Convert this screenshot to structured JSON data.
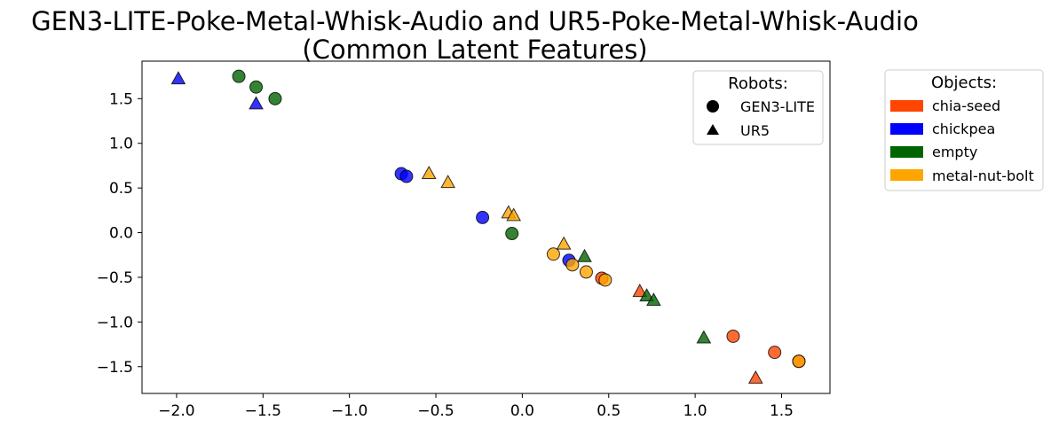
{
  "chart_data": {
    "type": "scatter",
    "title": "GEN3-LITE-Poke-Metal-Whisk-Audio and UR5-Poke-Metal-Whisk-Audio\n(Common Latent Features)",
    "xlim": [
      -2.2,
      1.78
    ],
    "ylim": [
      -1.8,
      1.92
    ],
    "x_ticks": [
      -2.0,
      -1.5,
      -1.0,
      -0.5,
      0.0,
      0.5,
      1.0,
      1.5
    ],
    "y_ticks": [
      1.5,
      1.0,
      0.5,
      0.0,
      -0.5,
      -1.0,
      -1.5
    ],
    "x_tick_labels": [
      "−2.0",
      "−1.5",
      "−1.0",
      "−0.5",
      "0.0",
      "0.5",
      "1.0",
      "1.5"
    ],
    "y_tick_labels": [
      "1.5",
      "1.0",
      "0.5",
      "0.0",
      "−0.5",
      "−1.0",
      "−1.5"
    ],
    "grid": false,
    "colors": {
      "chia-seed": "#ff4500",
      "chickpea": "#0000ff",
      "empty": "#006400",
      "metal-nut-bolt": "#ffa500"
    },
    "robots_legend": {
      "title": "Robots:",
      "placement": "top-right inside plot",
      "entries": [
        {
          "label": "GEN3-LITE",
          "marker": "circle"
        },
        {
          "label": "UR5",
          "marker": "triangle"
        }
      ]
    },
    "objects_legend": {
      "title": "Objects:",
      "placement": "right outside plot",
      "entries": [
        {
          "label": "chia-seed",
          "color": "#ff4500"
        },
        {
          "label": "chickpea",
          "color": "#0000ff"
        },
        {
          "label": "empty",
          "color": "#006400"
        },
        {
          "label": "metal-nut-bolt",
          "color": "#ffa500"
        }
      ]
    },
    "series": [
      {
        "robot": "GEN3-LITE",
        "object": "chia-seed",
        "marker": "circle",
        "points": [
          [
            0.46,
            -0.51
          ],
          [
            1.22,
            -1.16
          ],
          [
            1.46,
            -1.34
          ],
          [
            1.6,
            -1.44
          ]
        ]
      },
      {
        "robot": "GEN3-LITE",
        "object": "chickpea",
        "marker": "circle",
        "points": [
          [
            -0.7,
            0.66
          ],
          [
            -0.67,
            0.63
          ],
          [
            -0.23,
            0.17
          ],
          [
            0.27,
            -0.31
          ]
        ]
      },
      {
        "robot": "GEN3-LITE",
        "object": "empty",
        "marker": "circle",
        "points": [
          [
            -1.64,
            1.75
          ],
          [
            -1.54,
            1.63
          ],
          [
            -1.43,
            1.5
          ],
          [
            -0.06,
            -0.01
          ]
        ]
      },
      {
        "robot": "GEN3-LITE",
        "object": "metal-nut-bolt",
        "marker": "circle",
        "points": [
          [
            0.18,
            -0.24
          ],
          [
            0.29,
            -0.36
          ],
          [
            0.37,
            -0.44
          ],
          [
            0.48,
            -0.53
          ],
          [
            1.6,
            -1.44
          ]
        ]
      },
      {
        "robot": "UR5",
        "object": "chia-seed",
        "marker": "triangle",
        "points": [
          [
            0.68,
            -0.66
          ],
          [
            1.35,
            -1.63
          ]
        ]
      },
      {
        "robot": "UR5",
        "object": "chickpea",
        "marker": "triangle",
        "points": [
          [
            -1.99,
            1.72
          ],
          [
            -1.54,
            1.44
          ]
        ]
      },
      {
        "robot": "UR5",
        "object": "empty",
        "marker": "triangle",
        "points": [
          [
            0.36,
            -0.27
          ],
          [
            0.72,
            -0.71
          ],
          [
            0.76,
            -0.76
          ],
          [
            1.05,
            -1.18
          ]
        ]
      },
      {
        "robot": "UR5",
        "object": "metal-nut-bolt",
        "marker": "triangle",
        "points": [
          [
            -0.54,
            0.66
          ],
          [
            -0.43,
            0.56
          ],
          [
            -0.08,
            0.22
          ],
          [
            -0.05,
            0.19
          ],
          [
            0.24,
            -0.13
          ]
        ]
      }
    ]
  }
}
